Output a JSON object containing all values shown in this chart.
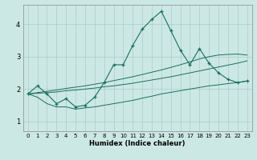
{
  "title": "",
  "xlabel": "Humidex (Indice chaleur)",
  "bg_color": "#cce8e4",
  "grid_color": "#aaccca",
  "line_color": "#1a6e60",
  "xlim": [
    -0.5,
    23.5
  ],
  "ylim": [
    0.7,
    4.6
  ],
  "xticks": [
    0,
    1,
    2,
    3,
    4,
    5,
    6,
    7,
    8,
    9,
    10,
    11,
    12,
    13,
    14,
    15,
    16,
    17,
    18,
    19,
    20,
    21,
    22,
    23
  ],
  "yticks": [
    1,
    2,
    3,
    4
  ],
  "main_y": [
    1.85,
    2.1,
    1.85,
    1.55,
    1.7,
    1.45,
    1.5,
    1.75,
    2.2,
    2.75,
    2.75,
    3.35,
    3.85,
    4.15,
    4.4,
    3.8,
    3.2,
    2.75,
    3.25,
    2.8,
    2.5,
    2.3,
    2.2,
    2.25
  ],
  "line1_y": [
    1.85,
    1.75,
    1.55,
    1.45,
    1.45,
    1.38,
    1.42,
    1.45,
    1.5,
    1.55,
    1.6,
    1.65,
    1.72,
    1.78,
    1.85,
    1.9,
    1.95,
    2.0,
    2.05,
    2.1,
    2.13,
    2.17,
    2.2,
    2.25
  ],
  "line2_y": [
    1.85,
    1.87,
    1.89,
    1.91,
    1.95,
    1.97,
    2.0,
    2.03,
    2.07,
    2.1,
    2.14,
    2.18,
    2.23,
    2.28,
    2.33,
    2.38,
    2.44,
    2.5,
    2.56,
    2.62,
    2.68,
    2.74,
    2.8,
    2.87
  ],
  "line3_y": [
    1.85,
    1.89,
    1.93,
    1.97,
    2.02,
    2.06,
    2.1,
    2.15,
    2.2,
    2.26,
    2.32,
    2.38,
    2.45,
    2.52,
    2.59,
    2.67,
    2.75,
    2.84,
    2.93,
    3.0,
    3.05,
    3.07,
    3.08,
    3.05
  ]
}
